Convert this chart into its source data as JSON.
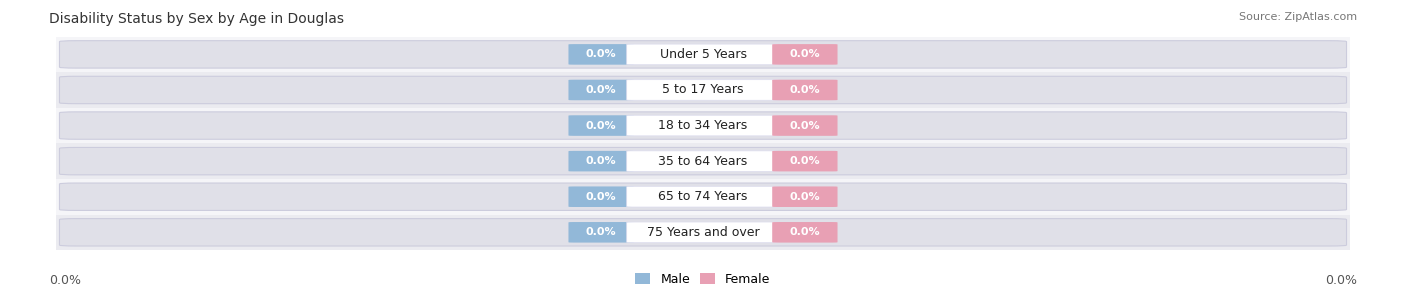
{
  "title": "Disability Status by Sex by Age in Douglas",
  "source": "Source: ZipAtlas.com",
  "categories": [
    "Under 5 Years",
    "5 to 17 Years",
    "18 to 34 Years",
    "35 to 64 Years",
    "65 to 74 Years",
    "75 Years and over"
  ],
  "male_values": [
    0.0,
    0.0,
    0.0,
    0.0,
    0.0,
    0.0
  ],
  "female_values": [
    0.0,
    0.0,
    0.0,
    0.0,
    0.0,
    0.0
  ],
  "male_color": "#92b8d8",
  "female_color": "#e8a0b4",
  "track_color": "#e0e0e8",
  "track_edge_color": "#ccccdd",
  "row_bg_even": "#f5f5f8",
  "row_bg_odd": "#ebebf0",
  "x_left_label": "0.0%",
  "x_right_label": "0.0%",
  "xlabel_fontsize": 9,
  "title_fontsize": 10,
  "bar_label_fontsize": 8,
  "category_fontsize": 9,
  "legend_fontsize": 9,
  "background_color": "#ffffff"
}
